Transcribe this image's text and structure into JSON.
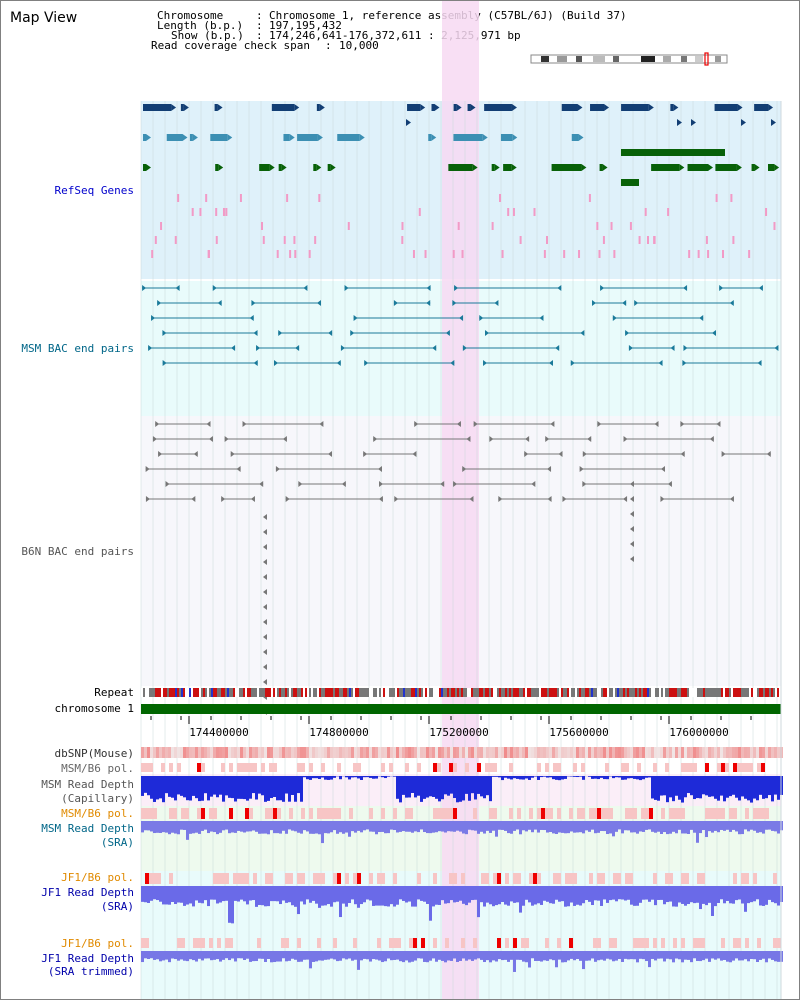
{
  "view_title": "Map View",
  "header": {
    "chromosome_label": "Chromosome",
    "chromosome_value": "Chromosome 1, reference assembly (C57BL/6J) (Build 37)",
    "length_label": "Length (b.p.)",
    "length_value": "197,195,432",
    "show_label": "Show (b.p.)",
    "show_value": "174,246,641-176,372,611 : 2,125,971 bp",
    "coverage_label": "Read coverage check span",
    "coverage_value": "10,000",
    "sep": ":"
  },
  "tracks": {
    "refseq": "RefSeq Genes",
    "msm_bac": "MSM BAC end pairs",
    "b6n_bac": "B6N BAC end pairs",
    "repeat": "Repeat",
    "chromosome": "chromosome 1",
    "dbsnp": "dbSNP(Mouse)",
    "msm_b6_pol_1": "MSM/B6 pol.",
    "msm_depth_cap_1": "MSM Read Depth",
    "msm_depth_cap_2": "(Capillary)",
    "msm_b6_pol_2": "MSM/B6 pol.",
    "msm_depth_sra_1": "MSM Read Depth",
    "msm_depth_sra_2": "(SRA)",
    "jf1_b6_pol_1": "JF1/B6 pol.",
    "jf1_depth_sra_1": "JF1 Read Depth",
    "jf1_depth_sra_2": "(SRA)",
    "jf1_b6_pol_2": "JF1/B6 pol.",
    "jf1_depth_trim_1": "JF1 Read Depth",
    "jf1_depth_trim_2": "(SRA trimmed)"
  },
  "axis": {
    "ticks": [
      "174400000",
      "174800000",
      "175200000",
      "175600000",
      "176000000"
    ]
  },
  "colors": {
    "refseq_bg": "#dff1fa",
    "msm_bg": "#e9fbfb",
    "b6n_bg": "#f7f7fb",
    "highlight": "#f7d9f2",
    "gene_dark": "#123e74",
    "gene_mid": "#3c8fb3",
    "gene_green": "#086108",
    "label_blue": "#0000cc",
    "label_teal": "#006688",
    "label_orange": "#e08a00",
    "label_gray": "#555555",
    "chromosome_bar": "#006600"
  }
}
